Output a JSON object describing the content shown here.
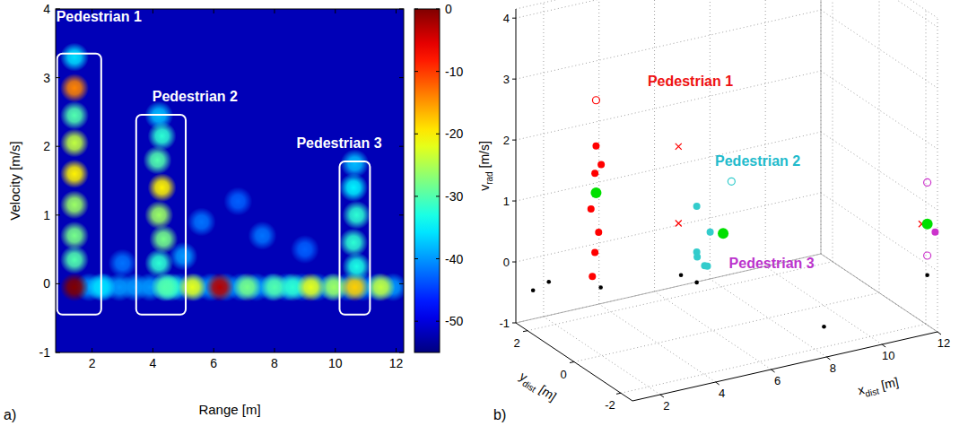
{
  "chart_data": [
    {
      "type": "heatmap",
      "panel_label": "a)",
      "xlabel": "Range [m]",
      "ylabel": "Velocity [m/s]",
      "xlim": [
        0.8,
        12.25
      ],
      "xticks": [
        2,
        4,
        6,
        8,
        10,
        12
      ],
      "ylim": [
        -1,
        4
      ],
      "yticks": [
        -1,
        0,
        1,
        2,
        3,
        4
      ],
      "background": -52,
      "spots": [
        {
          "x": 1.9,
          "y": -0.05,
          "value": -40
        },
        {
          "x": 2.4,
          "y": -0.05,
          "value": -40
        },
        {
          "x": 2.9,
          "y": -0.05,
          "value": -40
        },
        {
          "x": 3.4,
          "y": -0.05,
          "value": -40
        },
        {
          "x": 3.9,
          "y": -0.05,
          "value": -40
        },
        {
          "x": 4.4,
          "y": -0.05,
          "value": -40
        },
        {
          "x": 4.9,
          "y": -0.05,
          "value": -40
        },
        {
          "x": 5.4,
          "y": -0.05,
          "value": -40
        },
        {
          "x": 5.9,
          "y": -0.05,
          "value": -40
        },
        {
          "x": 6.4,
          "y": -0.05,
          "value": -40
        },
        {
          "x": 6.9,
          "y": -0.05,
          "value": -40
        },
        {
          "x": 7.4,
          "y": -0.05,
          "value": -40
        },
        {
          "x": 7.9,
          "y": -0.05,
          "value": -40
        },
        {
          "x": 8.4,
          "y": -0.05,
          "value": -40
        },
        {
          "x": 8.9,
          "y": -0.05,
          "value": -40
        },
        {
          "x": 9.4,
          "y": -0.05,
          "value": -40
        },
        {
          "x": 9.9,
          "y": -0.05,
          "value": -40
        },
        {
          "x": 10.4,
          "y": -0.05,
          "value": -40
        },
        {
          "x": 10.9,
          "y": -0.05,
          "value": -40
        },
        {
          "x": 11.4,
          "y": -0.05,
          "value": -40
        },
        {
          "x": 11.9,
          "y": -0.05,
          "value": -40
        },
        {
          "x": 5.6,
          "y": 0.9,
          "value": -42
        },
        {
          "x": 6.8,
          "y": 1.2,
          "value": -43
        },
        {
          "x": 7.6,
          "y": 0.7,
          "value": -42
        },
        {
          "x": 9.0,
          "y": 0.5,
          "value": -43
        },
        {
          "x": 5.0,
          "y": 0.4,
          "value": -40
        },
        {
          "x": 3.0,
          "y": 0.3,
          "value": -42
        },
        {
          "x": 2.3,
          "y": -0.05,
          "value": -36
        },
        {
          "x": 4.6,
          "y": -0.05,
          "value": -32
        },
        {
          "x": 5.3,
          "y": -0.05,
          "value": -22
        },
        {
          "x": 6.2,
          "y": -0.05,
          "value": -3
        },
        {
          "x": 7.1,
          "y": -0.05,
          "value": -28
        },
        {
          "x": 8.0,
          "y": -0.05,
          "value": -30
        },
        {
          "x": 8.6,
          "y": -0.05,
          "value": -32
        },
        {
          "x": 9.2,
          "y": -0.05,
          "value": -22
        },
        {
          "x": 9.95,
          "y": -0.05,
          "value": -26
        },
        {
          "x": 10.64,
          "y": -0.05,
          "value": -18
        },
        {
          "x": 11.5,
          "y": -0.05,
          "value": -24
        },
        {
          "x": 1.42,
          "y": 3.3,
          "value": -36
        },
        {
          "x": 1.42,
          "y": 2.85,
          "value": -14
        },
        {
          "x": 1.42,
          "y": 2.45,
          "value": -30
        },
        {
          "x": 1.42,
          "y": 2.05,
          "value": -24
        },
        {
          "x": 1.42,
          "y": 1.6,
          "value": -20
        },
        {
          "x": 1.42,
          "y": 1.15,
          "value": -26
        },
        {
          "x": 1.42,
          "y": 0.7,
          "value": -28
        },
        {
          "x": 1.42,
          "y": 0.35,
          "value": -30
        },
        {
          "x": 1.42,
          "y": -0.05,
          "value": 0
        },
        {
          "x": 4.2,
          "y": 2.45,
          "value": -38
        },
        {
          "x": 4.3,
          "y": 2.15,
          "value": -32
        },
        {
          "x": 4.15,
          "y": 1.8,
          "value": -30
        },
        {
          "x": 4.3,
          "y": 1.4,
          "value": -20
        },
        {
          "x": 4.2,
          "y": 1.0,
          "value": -26
        },
        {
          "x": 4.35,
          "y": 0.65,
          "value": -28
        },
        {
          "x": 4.2,
          "y": 0.3,
          "value": -32
        },
        {
          "x": 4.4,
          "y": -0.05,
          "value": -30
        },
        {
          "x": 10.64,
          "y": 1.75,
          "value": -38
        },
        {
          "x": 10.6,
          "y": 1.4,
          "value": -35
        },
        {
          "x": 10.7,
          "y": 1.0,
          "value": -32
        },
        {
          "x": 10.6,
          "y": 0.6,
          "value": -32
        },
        {
          "x": 10.7,
          "y": 0.25,
          "value": -33
        }
      ],
      "colorbar": {
        "range": [
          -55,
          0
        ],
        "ticks": [
          0,
          -10,
          -20,
          -30,
          -40,
          -50
        ]
      },
      "annotations": [
        {
          "text": "Pedestrian 1",
          "x": [
            0.85,
            2.3
          ],
          "y": [
            -0.45,
            3.35
          ],
          "label_x": 0.82,
          "label_y": 3.82
        },
        {
          "text": "Pedestrian 2",
          "x": [
            3.45,
            5.08
          ],
          "y": [
            -0.45,
            2.46
          ],
          "label_x": 3.98,
          "label_y": 2.66
        },
        {
          "text": "Pedestrian 3",
          "x": [
            10.14,
            11.14
          ],
          "y": [
            -0.45,
            1.78
          ],
          "label_x": 8.72,
          "label_y": 1.97
        }
      ]
    },
    {
      "type": "scatter3d",
      "panel_label": "b)",
      "xlabel": {
        "base": "x",
        "sub": "dist",
        "rest": " [m]"
      },
      "ylabel": {
        "base": "y",
        "sub": "dist",
        "rest": " [m]"
      },
      "zlabel": {
        "base": "v",
        "sub": "rad",
        "rest": " [m/s]"
      },
      "xlim": [
        1,
        12
      ],
      "xticks": [
        2,
        4,
        6,
        8,
        10,
        12
      ],
      "ylim": [
        -2.5,
        2.5
      ],
      "yticks": [
        2,
        0,
        -2
      ],
      "zlim": [
        -1,
        4.15
      ],
      "zticks": [
        -1,
        0,
        1,
        2,
        3,
        4
      ],
      "grid": true,
      "series": [
        {
          "color": "#ff0000",
          "marker": "circle",
          "x": [
            2.8,
            2.9,
            2.8,
            2.7,
            2.85,
            2.8,
            2.75
          ],
          "y": [
            1.2,
            1.1,
            1.25,
            1.3,
            1.15,
            1.25,
            1.3
          ],
          "z": [
            2.05,
            1.76,
            1.59,
            1.0,
            0.64,
            0.29,
            -0.11
          ]
        },
        {
          "color": "#ff0000",
          "marker": "circle-open",
          "x": [
            2.8
          ],
          "y": [
            1.2
          ],
          "z": [
            2.8
          ]
        },
        {
          "color": "#ff0000",
          "marker": "x",
          "x": [
            3.5,
            3.5,
            11.6
          ],
          "y": [
            -1.5,
            -1.5,
            -2.3
          ],
          "z": [
            2.66,
            1.4,
            0.76
          ]
        },
        {
          "color": "#33cccc",
          "marker": "circle",
          "x": [
            5,
            5.4,
            5,
            5.1,
            5.2,
            5.3
          ],
          "y": [
            -0.5,
            -0.6,
            -0.5,
            -0.4,
            -0.6,
            -0.6
          ],
          "z": [
            1.27,
            0.83,
            0.52,
            0.4,
            0.3,
            0.28
          ]
        },
        {
          "color": "#33cccc",
          "marker": "circle-open",
          "x": [
            6
          ],
          "y": [
            -0.8
          ],
          "z": [
            1.65
          ]
        },
        {
          "color": "#cc33cc",
          "marker": "circle",
          "x": [
            12
          ],
          "y": [
            -2.4
          ],
          "z": [
            0.61
          ]
        },
        {
          "color": "#cc33cc",
          "marker": "circle-open",
          "x": [
            11.8,
            11.8
          ],
          "y": [
            -2.3,
            -2.3
          ],
          "z": [
            1.42,
            0.22
          ]
        },
        {
          "color": "#00e000",
          "marker": "circle-large",
          "x": [
            2.8,
            5.7,
            11.8
          ],
          "y": [
            1.2,
            -0.8,
            -2.3
          ],
          "z": [
            1.28,
            0.83,
            0.74
          ]
        },
        {
          "color": "#000000",
          "marker": "dot",
          "x": [
            1.2,
            1.6,
            2.8,
            4.6,
            5,
            9,
            11.8
          ],
          "y": [
            2.0,
            1.8,
            1.0,
            -0.3,
            -0.5,
            -1.2,
            -2.3
          ],
          "z": [
            -0.36,
            -0.21,
            -0.22,
            0.13,
            0.02,
            -0.94,
            -0.1
          ]
        }
      ],
      "annotations": [
        {
          "text": "Pedestrian 1",
          "color": "#ee1111",
          "x": 6.2,
          "y": 1.2,
          "z": 2.77
        },
        {
          "text": "Pedestrian 2",
          "color": "#22bbcc",
          "x": 7.2,
          "y": -0.5,
          "z": 1.79
        },
        {
          "text": "Pedestrian 3",
          "color": "#bb33cc",
          "x": 6.44,
          "y": -2,
          "z": 0.58
        }
      ]
    }
  ]
}
